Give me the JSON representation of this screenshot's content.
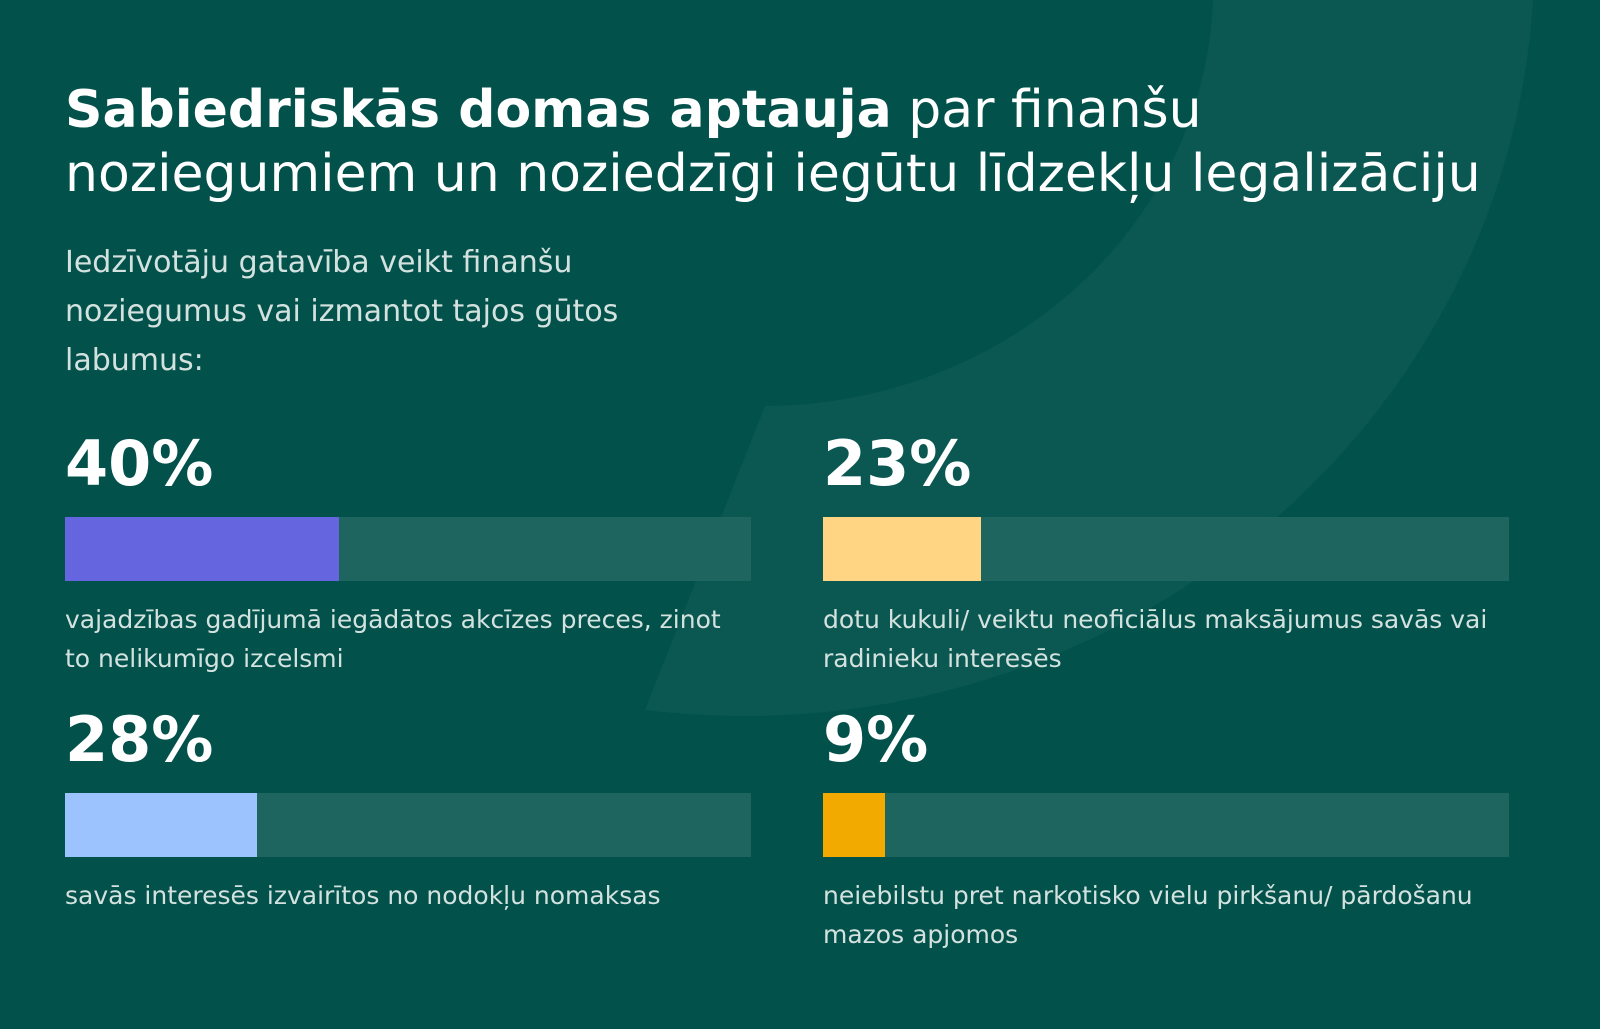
{
  "title": {
    "bold": "Sabiedriskās domas aptauja",
    "rest": " par finanšu noziegumiem un noziedzīgi iegūtu līdzekļu legalizāciju"
  },
  "subtitle": "Iedzīvotāju gatavība veikt finanšu noziegumus vai izmantot tajos gūtos labumus:",
  "colors": {
    "background": "#02514b",
    "track": "#1e645f",
    "shape": "#0b5852"
  },
  "stats": [
    {
      "value_text": "40%",
      "value": 40,
      "label": "vajadzības gadījumā iegādātos akcīzes preces, zinot to nelikumīgo izcelsmi",
      "color": "#6565df"
    },
    {
      "value_text": "23%",
      "value": 23,
      "label": "dotu kukuli/ veiktu neoficiālus maksājumus savās vai radinieku interesēs",
      "color": "#ffd584"
    },
    {
      "value_text": "28%",
      "value": 28,
      "label": "savās interesēs izvairītos no nodokļu nomaksas",
      "color": "#9dc3ff"
    },
    {
      "value_text": "9%",
      "value": 9,
      "label": "neiebilstu pret narkotisko vielu pirkšanu/ pārdošanu mazos apjomos",
      "color": "#f2a900"
    }
  ],
  "chart_data": {
    "type": "bar",
    "categories": [
      "vajadzības gadījumā iegādātos akcīzes preces, zinot to nelikumīgo izcelsmi",
      "dotu kukuli/ veiktu neoficiālus maksājumus savās vai radinieku interesēs",
      "savās interesēs izvairītos no nodokļu nomaksas",
      "neiebilstu pret narkotisko vielu pirkšanu/ pārdošanu mazos apjomos"
    ],
    "values": [
      40,
      23,
      28,
      9
    ],
    "ylim": [
      0,
      100
    ],
    "orientation": "horizontal",
    "layout": "2x2 grid",
    "grid": false
  }
}
